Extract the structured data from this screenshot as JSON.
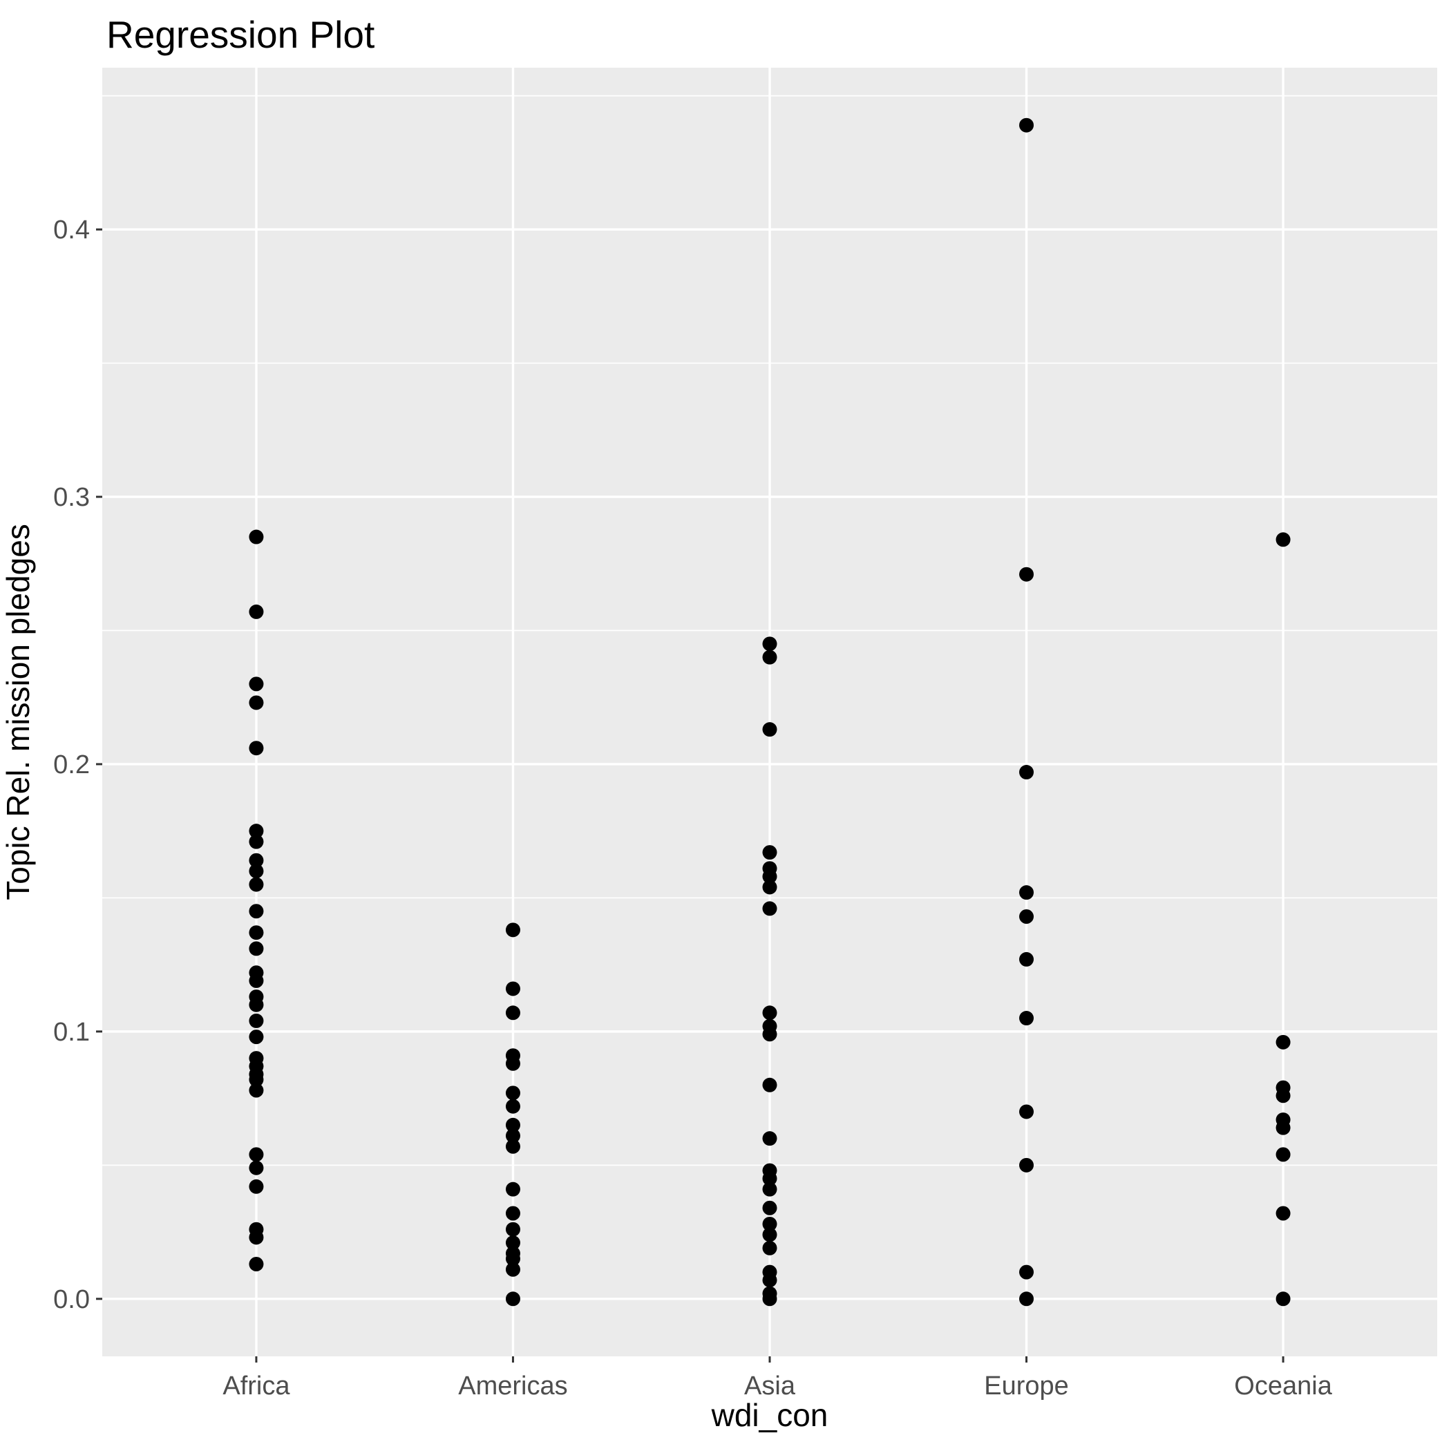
{
  "chart_data": {
    "type": "scatter",
    "title": "Regression Plot",
    "xlabel": "wdi_con",
    "ylabel": "Topic Rel. mission pledges",
    "categories": [
      "Africa",
      "Americas",
      "Asia",
      "Europe",
      "Oceania"
    ],
    "series": [
      {
        "name": "Africa",
        "values": [
          0.285,
          0.257,
          0.23,
          0.223,
          0.206,
          0.175,
          0.171,
          0.164,
          0.16,
          0.155,
          0.145,
          0.137,
          0.131,
          0.122,
          0.119,
          0.113,
          0.11,
          0.104,
          0.098,
          0.09,
          0.087,
          0.084,
          0.082,
          0.078,
          0.054,
          0.049,
          0.042,
          0.026,
          0.023,
          0.013
        ]
      },
      {
        "name": "Americas",
        "values": [
          0.138,
          0.116,
          0.107,
          0.091,
          0.088,
          0.077,
          0.072,
          0.065,
          0.061,
          0.057,
          0.041,
          0.032,
          0.026,
          0.021,
          0.017,
          0.015,
          0.011,
          0.0
        ]
      },
      {
        "name": "Asia",
        "values": [
          0.245,
          0.24,
          0.213,
          0.167,
          0.161,
          0.158,
          0.154,
          0.146,
          0.107,
          0.102,
          0.099,
          0.08,
          0.06,
          0.048,
          0.045,
          0.041,
          0.034,
          0.028,
          0.024,
          0.019,
          0.01,
          0.007,
          0.002,
          0.0
        ]
      },
      {
        "name": "Europe",
        "values": [
          0.439,
          0.271,
          0.197,
          0.152,
          0.143,
          0.127,
          0.105,
          0.07,
          0.05,
          0.01,
          0.0
        ]
      },
      {
        "name": "Oceania",
        "values": [
          0.284,
          0.096,
          0.079,
          0.076,
          0.067,
          0.064,
          0.054,
          0.032,
          0.0
        ]
      }
    ],
    "y_axis": {
      "tick_values": [
        0.0,
        0.1,
        0.2,
        0.3,
        0.4
      ],
      "tick_labels": [
        "0.0",
        "0.1",
        "0.2",
        "0.3",
        "0.4"
      ],
      "minor_tick_values": [
        0.05,
        0.15,
        0.25,
        0.35,
        0.45
      ],
      "ylim": [
        -0.0215,
        0.4605
      ]
    },
    "x_axis": {
      "tick_labels": [
        "Africa",
        "Americas",
        "Asia",
        "Europe",
        "Oceania"
      ]
    },
    "grid": {
      "major": true,
      "minor": true,
      "gridline_color": "#FFFFFF"
    },
    "legend": "none",
    "style": {
      "panel_bg": "#EBEBEB",
      "point_color": "#000000",
      "tick_label_color": "#4D4D4D",
      "tick_mark_color": "#333333",
      "axis_title_color": "#000000",
      "title_color": "#000000"
    }
  }
}
